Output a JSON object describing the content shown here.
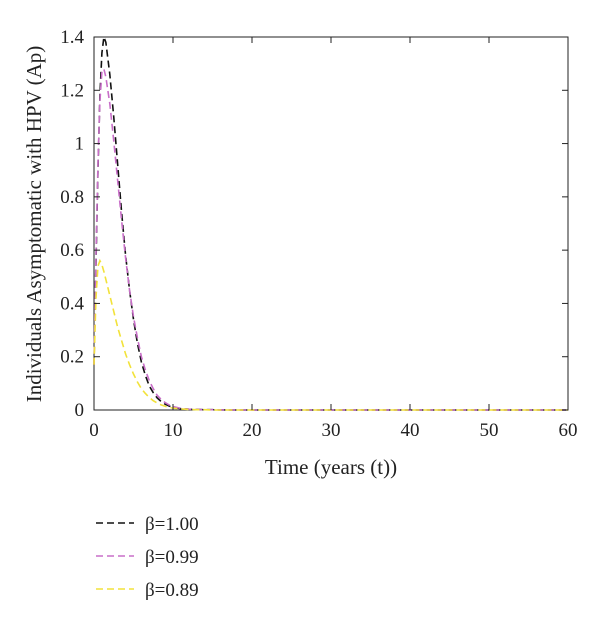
{
  "chart_data": {
    "type": "line",
    "xlabel": "Time (years (t))",
    "ylabel": "Individuals Asymptomatic with HPV (Ap)",
    "xlim": [
      0,
      60
    ],
    "ylim": [
      0,
      1.4
    ],
    "xticks": [
      "0",
      "10",
      "20",
      "30",
      "40",
      "50",
      "60"
    ],
    "yticks": [
      "0",
      "0.2",
      "0.4",
      "0.6",
      "0.8",
      "1",
      "1.2",
      "1.4"
    ],
    "grid": false,
    "legend_position": "below plot, left",
    "line_style": "dashed",
    "series": [
      {
        "name": "β=1.00",
        "color": "#111111",
        "x": [
          0,
          0.25,
          0.5,
          0.75,
          1.0,
          1.25,
          1.5,
          2,
          2.5,
          3,
          3.5,
          4,
          4.5,
          5,
          5.5,
          6,
          6.5,
          7,
          7.5,
          8,
          8.5,
          9,
          9.5,
          10,
          11,
          12,
          13,
          14,
          15,
          17,
          20,
          25,
          30,
          40,
          50,
          60
        ],
        "y": [
          0.17,
          0.55,
          0.9,
          1.18,
          1.34,
          1.4,
          1.38,
          1.26,
          1.1,
          0.92,
          0.74,
          0.58,
          0.45,
          0.34,
          0.25,
          0.18,
          0.13,
          0.09,
          0.065,
          0.045,
          0.032,
          0.022,
          0.015,
          0.01,
          0.005,
          0.003,
          0.002,
          0.001,
          0.001,
          0,
          0,
          0,
          0,
          0,
          0,
          0
        ]
      },
      {
        "name": "β=0.99",
        "color": "#c86ec8",
        "x": [
          0,
          0.25,
          0.5,
          0.75,
          1.0,
          1.25,
          1.5,
          2,
          2.5,
          3,
          3.5,
          4,
          4.5,
          5,
          5.5,
          6,
          6.5,
          7,
          7.5,
          8,
          8.5,
          9,
          9.5,
          10,
          11,
          12,
          13,
          14,
          15,
          17,
          20,
          25,
          30,
          40,
          50,
          60
        ],
        "y": [
          0.17,
          0.58,
          0.92,
          1.16,
          1.27,
          1.28,
          1.25,
          1.15,
          1.01,
          0.86,
          0.71,
          0.57,
          0.45,
          0.35,
          0.27,
          0.2,
          0.15,
          0.11,
          0.08,
          0.055,
          0.04,
          0.028,
          0.019,
          0.013,
          0.006,
          0.003,
          0.002,
          0.001,
          0.001,
          0,
          0,
          0,
          0,
          0,
          0,
          0
        ]
      },
      {
        "name": "β=0.89",
        "color": "#f2e23a",
        "x": [
          0,
          0.25,
          0.5,
          0.75,
          1.0,
          1.25,
          1.5,
          2,
          2.5,
          3,
          3.5,
          4,
          4.5,
          5,
          5.5,
          6,
          6.5,
          7,
          7.5,
          8,
          8.5,
          9,
          9.5,
          10,
          11,
          12,
          13,
          14,
          15,
          17,
          20,
          25,
          30,
          40,
          50,
          60
        ],
        "y": [
          0.17,
          0.42,
          0.54,
          0.56,
          0.545,
          0.52,
          0.49,
          0.43,
          0.37,
          0.31,
          0.26,
          0.21,
          0.17,
          0.135,
          0.105,
          0.08,
          0.062,
          0.047,
          0.035,
          0.026,
          0.019,
          0.014,
          0.01,
          0.007,
          0.004,
          0.002,
          0.001,
          0.001,
          0,
          0,
          0,
          0,
          0,
          0,
          0,
          0
        ]
      }
    ]
  }
}
